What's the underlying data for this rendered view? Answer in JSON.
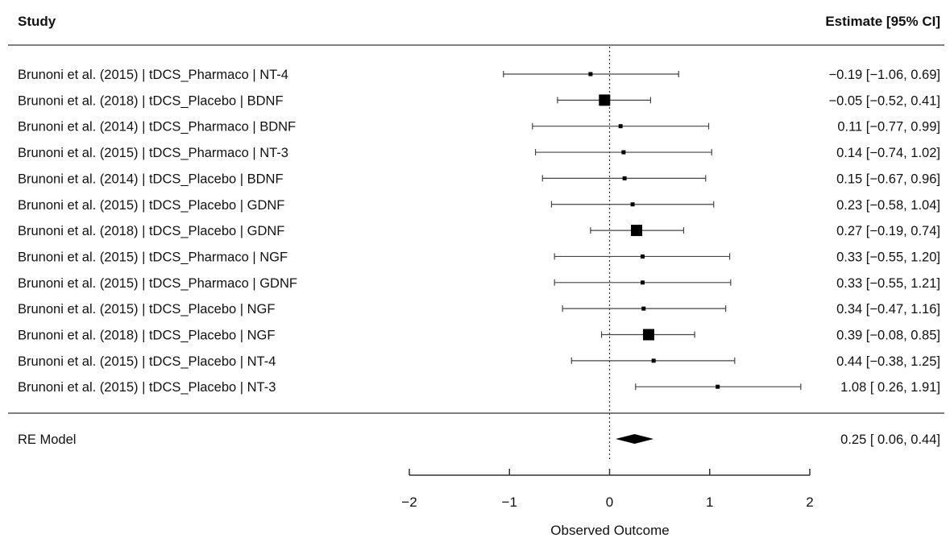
{
  "header": {
    "study_label": "Study",
    "estimate_label": "Estimate [95% CI]"
  },
  "chart_data": {
    "type": "forest",
    "xlabel": "Observed Outcome",
    "xlim": [
      -2,
      2
    ],
    "x_ticks": [
      -2,
      -1,
      0,
      1,
      2
    ],
    "x_tick_labels": [
      "−2",
      "−1",
      "0",
      "1",
      "2"
    ],
    "reference_line": 0,
    "studies": [
      {
        "label": "Brunoni et al. (2015) | tDCS_Pharmaco | NT-4",
        "estimate": -0.19,
        "ci_low": -1.06,
        "ci_high": 0.69,
        "text": "−0.19 [−1.06, 0.69]",
        "weight": 0.5
      },
      {
        "label": "Brunoni et al. (2018) | tDCS_Placebo | BDNF",
        "estimate": -0.05,
        "ci_low": -0.52,
        "ci_high": 0.41,
        "text": "−0.05 [−0.52, 0.41]",
        "weight": 1.0
      },
      {
        "label": "Brunoni et al. (2014) | tDCS_Pharmaco | BDNF",
        "estimate": 0.11,
        "ci_low": -0.77,
        "ci_high": 0.99,
        "text": "0.11 [−0.77, 0.99]",
        "weight": 0.5
      },
      {
        "label": "Brunoni et al. (2015) | tDCS_Pharmaco | NT-3",
        "estimate": 0.14,
        "ci_low": -0.74,
        "ci_high": 1.02,
        "text": "0.14 [−0.74, 1.02]",
        "weight": 0.5
      },
      {
        "label": "Brunoni et al. (2014) | tDCS_Placebo | BDNF",
        "estimate": 0.15,
        "ci_low": -0.67,
        "ci_high": 0.96,
        "text": "0.15 [−0.67, 0.96]",
        "weight": 0.5
      },
      {
        "label": "Brunoni et al. (2015) | tDCS_Placebo | GDNF",
        "estimate": 0.23,
        "ci_low": -0.58,
        "ci_high": 1.04,
        "text": "0.23 [−0.58, 1.04]",
        "weight": 0.5
      },
      {
        "label": "Brunoni et al. (2018) | tDCS_Placebo | GDNF",
        "estimate": 0.27,
        "ci_low": -0.19,
        "ci_high": 0.74,
        "text": "0.27 [−0.19, 0.74]",
        "weight": 1.0
      },
      {
        "label": "Brunoni et al. (2015) | tDCS_Pharmaco | NGF",
        "estimate": 0.33,
        "ci_low": -0.55,
        "ci_high": 1.2,
        "text": "0.33 [−0.55, 1.20]",
        "weight": 0.5
      },
      {
        "label": "Brunoni et al. (2015) | tDCS_Pharmaco | GDNF",
        "estimate": 0.33,
        "ci_low": -0.55,
        "ci_high": 1.21,
        "text": "0.33 [−0.55, 1.21]",
        "weight": 0.5
      },
      {
        "label": "Brunoni et al. (2015) | tDCS_Placebo | NGF",
        "estimate": 0.34,
        "ci_low": -0.47,
        "ci_high": 1.16,
        "text": "0.34 [−0.47, 1.16]",
        "weight": 0.5
      },
      {
        "label": "Brunoni et al. (2018) | tDCS_Placebo | NGF",
        "estimate": 0.39,
        "ci_low": -0.08,
        "ci_high": 0.85,
        "text": "0.39 [−0.08, 0.85]",
        "weight": 1.0
      },
      {
        "label": "Brunoni et al. (2015) | tDCS_Placebo | NT-4",
        "estimate": 0.44,
        "ci_low": -0.38,
        "ci_high": 1.25,
        "text": "0.44 [−0.38, 1.25]",
        "weight": 0.5
      },
      {
        "label": "Brunoni et al. (2015) | tDCS_Placebo | NT-3",
        "estimate": 1.08,
        "ci_low": 0.26,
        "ci_high": 1.91,
        "text": "1.08 [ 0.26, 1.91]",
        "weight": 0.5
      }
    ],
    "summary": {
      "label": "RE Model",
      "estimate": 0.25,
      "ci_low": 0.06,
      "ci_high": 0.44,
      "text": "0.25 [ 0.06, 0.44]"
    }
  }
}
